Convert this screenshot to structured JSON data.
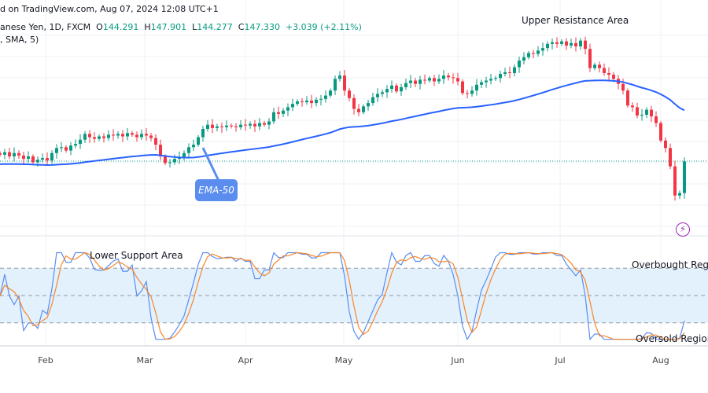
{
  "header": {
    "source": "d on TradingView.com, Aug 07, 2024 12:08 UTC+1",
    "symbol": "anese Yen, 1D, FXCM",
    "o_label": "O",
    "o": "144.291",
    "h_label": "H",
    "h": "147.901",
    "l_label": "L",
    "l": "144.277",
    "c_label": "C",
    "c": "147.330",
    "change": "+3.039 (+2.11%)",
    "indicator": ", SMA, 5)"
  },
  "annotations": {
    "upper": "Upper Resistance Area",
    "lower": "Lower Support Area",
    "overbought": "Overbought Region",
    "oversold": "Oversold Region",
    "ema": "EMA-50"
  },
  "colors": {
    "up": "#089981",
    "down": "#f23645",
    "ema": "#2962ff",
    "k": "#5b8def",
    "d": "#f7862a",
    "band": "#e3f1fd",
    "callout": "#5b8def",
    "icon": "#9c27b0"
  },
  "icons": {
    "alert": "lightning-icon"
  },
  "chart_data": {
    "type": "candlestick",
    "x_ticks": [
      "Feb",
      "Mar",
      "Apr",
      "May",
      "Jun",
      "Jul",
      "Aug"
    ],
    "last_price": 147.33,
    "closes": [
      148.1,
      148.4,
      147.9,
      148.3,
      148.0,
      147.6,
      147.9,
      147.2,
      147.5,
      147.7,
      147.4,
      148.3,
      148.9,
      149.0,
      148.6,
      149.2,
      149.4,
      149.9,
      150.6,
      150.2,
      150.0,
      150.3,
      150.1,
      150.5,
      150.4,
      150.6,
      150.3,
      150.7,
      150.5,
      150.2,
      150.6,
      150.4,
      150.1,
      149.3,
      147.9,
      147.1,
      147.2,
      147.6,
      147.8,
      148.3,
      149.0,
      149.3,
      150.2,
      151.2,
      151.7,
      151.3,
      151.5,
      151.4,
      151.6,
      151.5,
      151.4,
      151.7,
      151.6,
      151.8,
      151.5,
      151.9,
      151.7,
      152.1,
      153.2,
      153.0,
      153.4,
      153.8,
      154.2,
      154.5,
      154.4,
      154.6,
      154.3,
      154.7,
      154.8,
      155.2,
      155.8,
      157.2,
      157.6,
      155.8,
      154.9,
      153.6,
      153.2,
      153.9,
      154.3,
      155.0,
      155.4,
      155.6,
      156.0,
      156.4,
      155.7,
      156.2,
      156.7,
      157.0,
      156.6,
      157.1,
      157.0,
      157.3,
      156.9,
      157.2,
      157.6,
      157.4,
      157.3,
      156.9,
      155.5,
      155.4,
      155.8,
      156.5,
      156.8,
      157.0,
      157.2,
      157.3,
      157.8,
      158.0,
      157.9,
      158.6,
      159.4,
      159.8,
      160.3,
      160.2,
      160.6,
      160.9,
      161.4,
      161.6,
      161.4,
      161.7,
      161.2,
      161.5,
      161.1,
      161.8,
      160.8,
      158.5,
      158.9,
      158.5,
      157.9,
      157.7,
      157.2,
      156.6,
      155.8,
      154.0,
      153.8,
      152.8,
      152.9,
      153.5,
      152.7,
      151.9,
      149.8,
      148.9,
      146.7,
      143.2,
      143.5,
      147.3
    ],
    "ema_period": 50,
    "oscillator_levels": [
      80,
      50,
      20
    ]
  }
}
